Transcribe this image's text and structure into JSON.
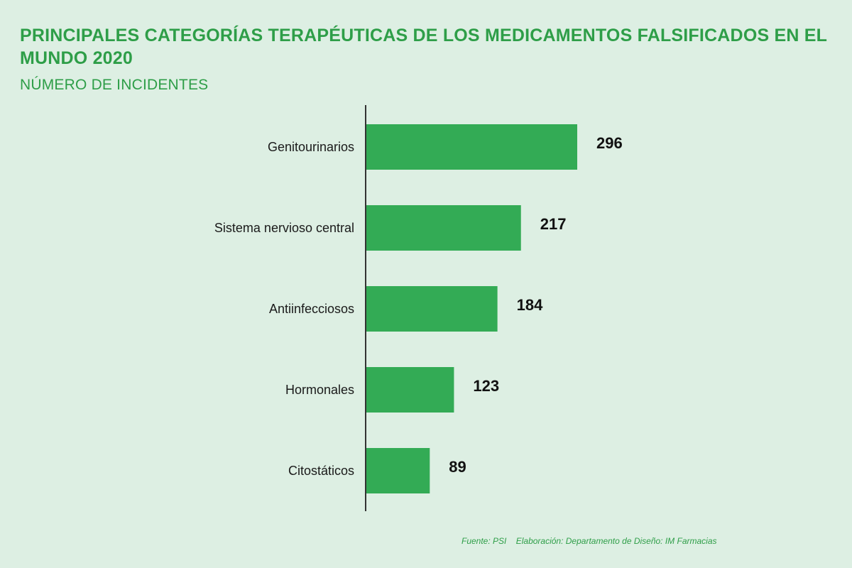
{
  "header": {
    "title": "PRINCIPALES CATEGORÍAS TERAPÉUTICAS DE LOS MEDICAMENTOS FALSIFICADOS EN EL MUNDO 2020",
    "subtitle": "NÚMERO DE INCIDENTES"
  },
  "colors": {
    "background": "#ddefe3",
    "accent": "#2e9e48",
    "bar": "#33ab55",
    "axis": "#333333"
  },
  "chart_data": {
    "type": "bar",
    "orientation": "horizontal",
    "title": "PRINCIPALES CATEGORÍAS TERAPÉUTICAS DE LOS MEDICAMENTOS FALSIFICADOS EN EL MUNDO 2020",
    "subtitle": "NÚMERO DE INCIDENTES",
    "categories": [
      "Genitourinarios",
      "Sistema nervioso central",
      "Antiinfecciosos",
      "Hormonales",
      "Citostáticos"
    ],
    "values": [
      296,
      217,
      184,
      123,
      89
    ],
    "data_labels": [
      "296",
      "217",
      "184",
      "123",
      "89"
    ],
    "grid": false,
    "legend": "none"
  },
  "footer": {
    "source": "Fuente: PSI",
    "credit": "Elaboración: Departamento de Diseño: IM Farmacias"
  }
}
